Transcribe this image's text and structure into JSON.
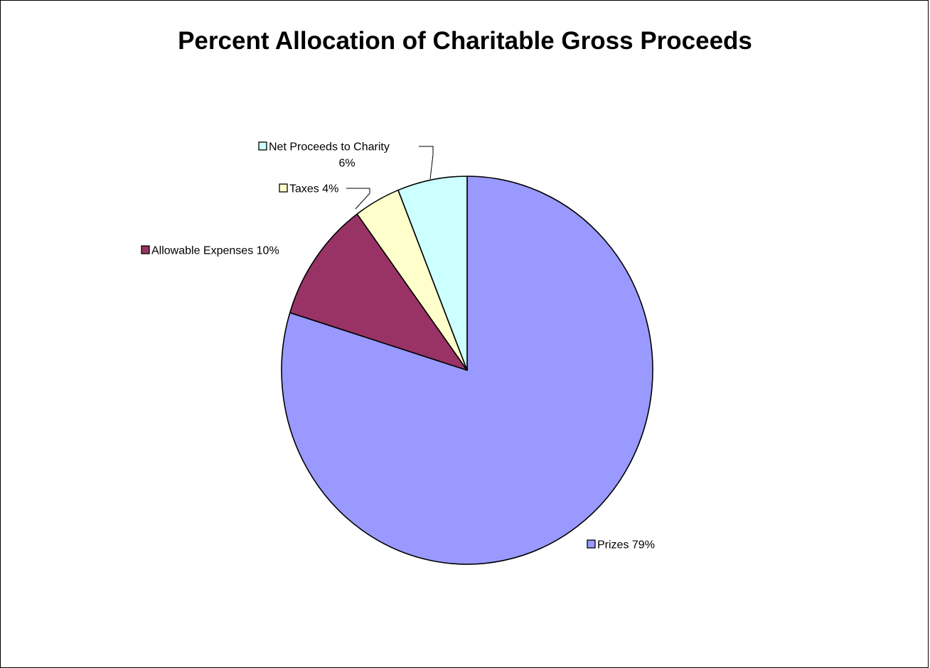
{
  "chart_data": {
    "type": "pie",
    "title": "Percent Allocation of Charitable Gross Proceeds",
    "start_angle_deg": 0,
    "direction": "clockwise",
    "slices": [
      {
        "name": "Prizes",
        "value": 79,
        "label": "Prizes 79%",
        "color": "#9999FF"
      },
      {
        "name": "Allowable Expenses",
        "value": 10,
        "label": "Allowable Expenses 10%",
        "color": "#993366"
      },
      {
        "name": "Taxes",
        "value": 4,
        "label": "Taxes 4%",
        "color": "#FFFFCC"
      },
      {
        "name": "Net Proceeds to Charity",
        "value": 6,
        "label": "Net Proceeds to Charity",
        "label_line2": "6%",
        "color": "#CCFFFF"
      }
    ],
    "legend": "none",
    "data_labels": "outside with leader lines"
  }
}
